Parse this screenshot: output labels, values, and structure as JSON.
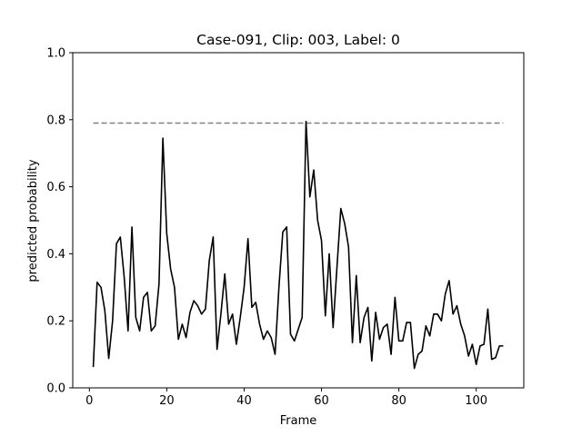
{
  "chart_data": {
    "type": "line",
    "title": "Case-091, Clip: 003, Label: 0",
    "xlabel": "Frame",
    "ylabel": "predicted probability",
    "xlim": [
      -4.3,
      112.3
    ],
    "ylim": [
      0,
      1
    ],
    "xticks": [
      0,
      20,
      40,
      60,
      80,
      100
    ],
    "yticks": [
      0.0,
      0.2,
      0.4,
      0.6,
      0.8,
      1.0
    ],
    "xtick_labels": [
      "0",
      "20",
      "40",
      "60",
      "80",
      "100"
    ],
    "ytick_labels": [
      "0.0",
      "0.2",
      "0.4",
      "0.6",
      "0.8",
      "1.0"
    ],
    "grid": false,
    "colors": {
      "series": "#000000",
      "threshold": "#808080"
    },
    "series": [
      {
        "name": "predicted probability",
        "x": [
          1,
          2,
          3,
          4,
          5,
          6,
          7,
          8,
          9,
          10,
          11,
          12,
          13,
          14,
          15,
          16,
          17,
          18,
          19,
          20,
          21,
          22,
          23,
          24,
          25,
          26,
          27,
          28,
          29,
          30,
          31,
          32,
          33,
          34,
          35,
          36,
          37,
          38,
          39,
          40,
          41,
          42,
          43,
          44,
          45,
          46,
          47,
          48,
          49,
          50,
          51,
          52,
          53,
          54,
          55,
          56,
          57,
          58,
          59,
          60,
          61,
          62,
          63,
          64,
          65,
          66,
          67,
          68,
          69,
          70,
          71,
          72,
          73,
          74,
          75,
          76,
          77,
          78,
          79,
          80,
          81,
          82,
          83,
          84,
          85,
          86,
          87,
          88,
          89,
          90,
          91,
          92,
          93,
          94,
          95,
          96,
          97,
          98,
          99,
          100,
          101,
          102,
          103,
          104,
          105,
          106,
          107
        ],
        "values": [
          0.062,
          0.315,
          0.3,
          0.23,
          0.088,
          0.2,
          0.43,
          0.45,
          0.33,
          0.17,
          0.48,
          0.21,
          0.17,
          0.27,
          0.285,
          0.17,
          0.185,
          0.31,
          0.745,
          0.46,
          0.355,
          0.3,
          0.145,
          0.19,
          0.15,
          0.225,
          0.26,
          0.245,
          0.22,
          0.235,
          0.38,
          0.45,
          0.115,
          0.22,
          0.34,
          0.19,
          0.22,
          0.13,
          0.21,
          0.3,
          0.445,
          0.24,
          0.255,
          0.19,
          0.145,
          0.17,
          0.15,
          0.1,
          0.3,
          0.465,
          0.48,
          0.16,
          0.14,
          0.175,
          0.21,
          0.795,
          0.57,
          0.65,
          0.5,
          0.44,
          0.215,
          0.4,
          0.18,
          0.36,
          0.535,
          0.49,
          0.42,
          0.135,
          0.335,
          0.135,
          0.21,
          0.24,
          0.08,
          0.225,
          0.145,
          0.18,
          0.19,
          0.1,
          0.27,
          0.14,
          0.14,
          0.195,
          0.195,
          0.058,
          0.1,
          0.11,
          0.185,
          0.155,
          0.22,
          0.22,
          0.2,
          0.28,
          0.32,
          0.22,
          0.245,
          0.19,
          0.155,
          0.095,
          0.13,
          0.07,
          0.125,
          0.13,
          0.235,
          0.085,
          0.09,
          0.125,
          0.125
        ]
      }
    ],
    "threshold": {
      "value": 0.79,
      "x_start": 1,
      "x_end": 107,
      "style": "dashed"
    }
  }
}
